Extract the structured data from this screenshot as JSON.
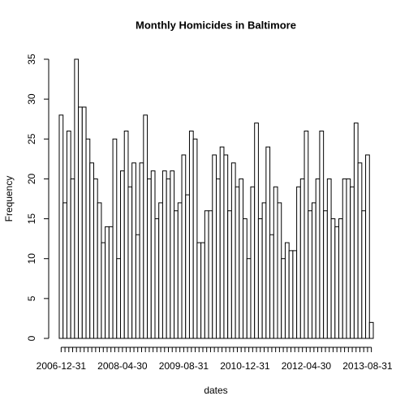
{
  "chart_data": {
    "type": "bar",
    "title": "Monthly Homicides in Baltimore",
    "x_label": "dates",
    "y_label": "Frequency",
    "categories": [
      "2006-12-31",
      null,
      null,
      null,
      null,
      null,
      null,
      null,
      null,
      null,
      null,
      null,
      null,
      null,
      null,
      null,
      "2008-04-30",
      null,
      null,
      null,
      null,
      null,
      null,
      null,
      null,
      null,
      null,
      null,
      null,
      null,
      null,
      null,
      "2009-08-31",
      null,
      null,
      null,
      null,
      null,
      null,
      null,
      null,
      null,
      null,
      null,
      null,
      null,
      null,
      null,
      "2010-12-31",
      null,
      null,
      null,
      null,
      null,
      null,
      null,
      null,
      null,
      null,
      null,
      null,
      null,
      null,
      null,
      "2012-04-30",
      null,
      null,
      null,
      null,
      null,
      null,
      null,
      null,
      null,
      null,
      null,
      null,
      null,
      null,
      null,
      "2013-08-31",
      null
    ],
    "values": [
      28,
      17,
      26,
      20,
      35,
      29,
      29,
      25,
      22,
      20,
      17,
      12,
      14,
      14,
      25,
      10,
      21,
      26,
      19,
      22,
      13,
      22,
      28,
      20,
      21,
      15,
      17,
      21,
      20,
      21,
      16,
      17,
      23,
      18,
      26,
      25,
      12,
      12,
      16,
      16,
      23,
      20,
      24,
      23,
      16,
      22,
      19,
      20,
      15,
      10,
      19,
      27,
      15,
      17,
      24,
      13,
      19,
      17,
      10,
      12,
      11,
      11,
      19,
      20,
      26,
      16,
      17,
      20,
      26,
      16,
      20,
      15,
      14,
      15,
      20,
      20,
      19,
      27,
      22,
      16,
      23,
      2
    ],
    "color": "#ffffff",
    "ylim": [
      0,
      35
    ],
    "yticks": [
      0,
      5,
      10,
      15,
      20,
      25,
      30,
      35
    ],
    "grid": false
  }
}
